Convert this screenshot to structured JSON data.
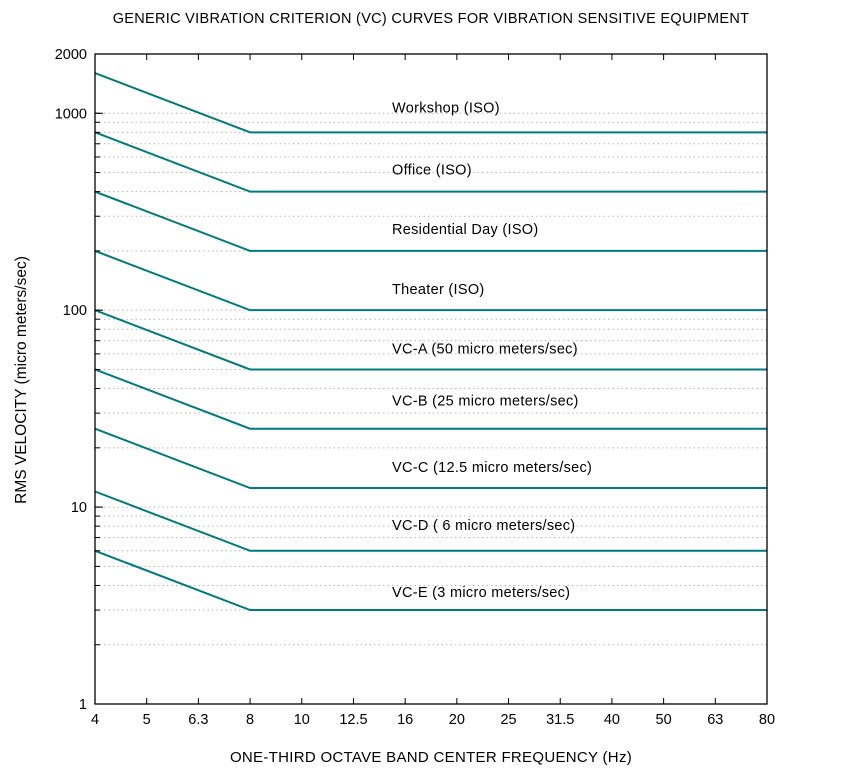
{
  "chart_data": {
    "type": "line",
    "title": "GENERIC VIBRATION CRITERION (VC) CURVES FOR VIBRATION SENSITIVE EQUIPMENT",
    "xlabel": "ONE-THIRD OCTAVE BAND CENTER FREQUENCY (Hz)",
    "ylabel": "RMS VELOCITY (micro meters/sec)",
    "x_scale": "categorical (one-third octave bands)",
    "y_scale": "log",
    "ylim": [
      1,
      2000
    ],
    "categories": [
      "4",
      "5",
      "6.3",
      "8",
      "10",
      "12.5",
      "16",
      "20",
      "25",
      "31.5",
      "40",
      "50",
      "63",
      "80"
    ],
    "y_ticks": [
      "1",
      "10",
      "100",
      "1000",
      "2000"
    ],
    "grid": "horizontal dotted at log minor ticks",
    "line_color": "#007b7b",
    "series": [
      {
        "name": "Workshop (ISO)",
        "points": [
          [
            "4",
            1600
          ],
          [
            "8",
            800
          ],
          [
            "80",
            800
          ]
        ]
      },
      {
        "name": "Office (ISO)",
        "points": [
          [
            "4",
            800
          ],
          [
            "8",
            400
          ],
          [
            "80",
            400
          ]
        ]
      },
      {
        "name": "Residential Day (ISO)",
        "points": [
          [
            "4",
            400
          ],
          [
            "8",
            200
          ],
          [
            "80",
            200
          ]
        ]
      },
      {
        "name": "Theater (ISO)",
        "points": [
          [
            "4",
            200
          ],
          [
            "8",
            100
          ],
          [
            "80",
            100
          ]
        ]
      },
      {
        "name": "VC-A (50 micro meters/sec)",
        "points": [
          [
            "4",
            100
          ],
          [
            "8",
            50
          ],
          [
            "80",
            50
          ]
        ]
      },
      {
        "name": "VC-B (25 micro meters/sec)",
        "points": [
          [
            "4",
            50
          ],
          [
            "8",
            25
          ],
          [
            "80",
            25
          ]
        ]
      },
      {
        "name": "VC-C (12.5 micro meters/sec)",
        "points": [
          [
            "4",
            25
          ],
          [
            "8",
            12.5
          ],
          [
            "80",
            12.5
          ]
        ]
      },
      {
        "name": "VC-D ( 6 micro meters/sec)",
        "points": [
          [
            "4",
            12
          ],
          [
            "8",
            6
          ],
          [
            "80",
            6
          ]
        ]
      },
      {
        "name": "VC-E (3 micro meters/sec)",
        "points": [
          [
            "4",
            6
          ],
          [
            "8",
            3
          ],
          [
            "80",
            3
          ]
        ]
      }
    ]
  }
}
